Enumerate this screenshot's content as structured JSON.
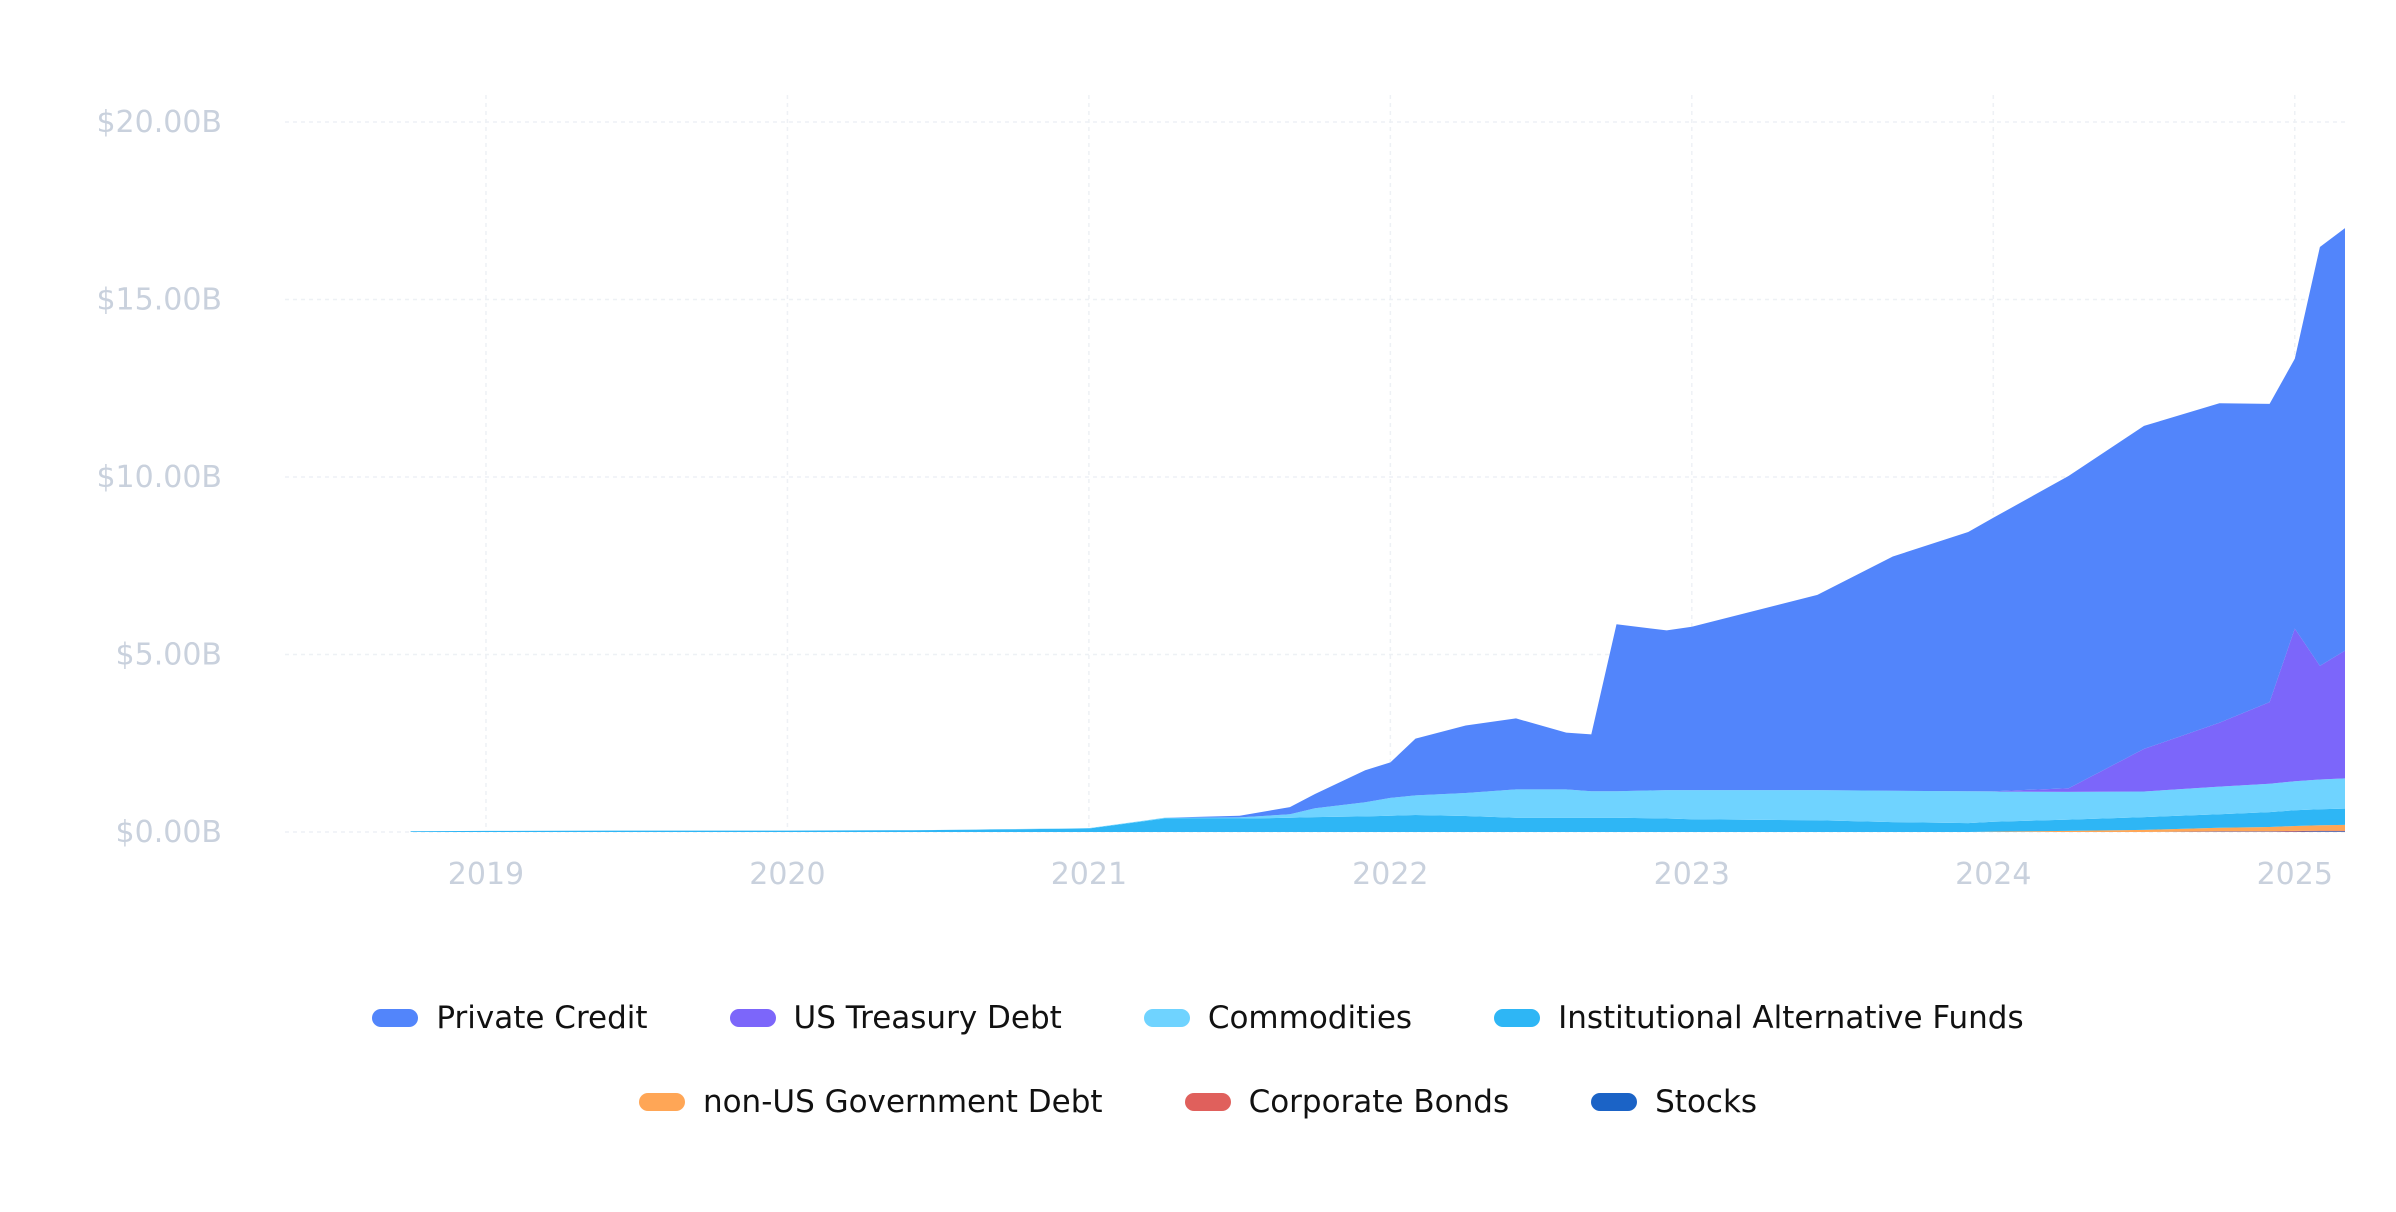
{
  "chart_data": {
    "type": "area",
    "stacked": true,
    "y_ticks": [
      "$0.00B",
      "$5.00B",
      "$10.00B",
      "$15.00B",
      "$20.00B"
    ],
    "x_ticks": [
      "2019",
      "2020",
      "2021",
      "2022",
      "2023",
      "2024",
      "2025"
    ],
    "ylim": [
      0,
      20
    ],
    "xlim": [
      "2018-05",
      "2025-03"
    ],
    "grid": true,
    "legend_position": "bottom",
    "x": [
      "2018-10",
      "2019-01",
      "2019-06",
      "2020-01",
      "2020-06",
      "2021-01",
      "2021-04",
      "2021-07",
      "2021-09",
      "2021-10",
      "2021-12",
      "2022-01",
      "2022-02",
      "2022-04",
      "2022-06",
      "2022-08",
      "2022-09",
      "2022-10",
      "2022-12",
      "2023-01",
      "2023-06",
      "2023-09",
      "2023-12",
      "2024-01",
      "2024-04",
      "2024-07",
      "2024-10",
      "2024-12",
      "2025-01",
      "2025-02",
      "2025-03"
    ],
    "series": [
      {
        "name": "Stocks",
        "color": "#1b63c6",
        "values": [
          0,
          0,
          0,
          0,
          0,
          0,
          0,
          0,
          0,
          0,
          0,
          0,
          0,
          0,
          0,
          0,
          0,
          0,
          0,
          0,
          0,
          0,
          0,
          0,
          0,
          0,
          0.01,
          0.01,
          0.01,
          0.02,
          0.02
        ]
      },
      {
        "name": "Corporate Bonds",
        "color": "#e0605c",
        "values": [
          0,
          0,
          0,
          0,
          0,
          0,
          0,
          0,
          0,
          0,
          0,
          0,
          0,
          0,
          0,
          0,
          0,
          0,
          0,
          0,
          0,
          0,
          0,
          0,
          0,
          0,
          0.01,
          0.01,
          0.02,
          0.02,
          0.02
        ]
      },
      {
        "name": "non-US Government Debt",
        "color": "#ffa656",
        "values": [
          0,
          0,
          0,
          0,
          0,
          0,
          0,
          0,
          0,
          0,
          0,
          0,
          0,
          0,
          0,
          0,
          0,
          0,
          0,
          0,
          0,
          0,
          0,
          0.01,
          0.03,
          0.06,
          0.1,
          0.12,
          0.14,
          0.15,
          0.16
        ]
      },
      {
        "name": "Institutional Alternative Funds",
        "color": "#2eb6f5",
        "values": [
          0.02,
          0.03,
          0.04,
          0.04,
          0.05,
          0.1,
          0.38,
          0.38,
          0.4,
          0.42,
          0.44,
          0.46,
          0.48,
          0.45,
          0.4,
          0.4,
          0.4,
          0.4,
          0.38,
          0.36,
          0.33,
          0.28,
          0.25,
          0.28,
          0.32,
          0.36,
          0.38,
          0.42,
          0.44,
          0.45,
          0.46
        ]
      },
      {
        "name": "Commodities",
        "color": "#6fd3ff",
        "values": [
          0,
          0,
          0,
          0,
          0,
          0.01,
          0.02,
          0.03,
          0.1,
          0.25,
          0.4,
          0.5,
          0.55,
          0.65,
          0.8,
          0.8,
          0.75,
          0.75,
          0.8,
          0.82,
          0.85,
          0.88,
          0.9,
          0.85,
          0.78,
          0.72,
          0.78,
          0.8,
          0.82,
          0.84,
          0.85
        ]
      },
      {
        "name": "US Treasury Debt",
        "color": "#7c66fa",
        "values": [
          0,
          0,
          0,
          0,
          0,
          0,
          0,
          0,
          0,
          0,
          0,
          0,
          0,
          0,
          0,
          0,
          0,
          0,
          0,
          0,
          0,
          0,
          0,
          0.01,
          0.1,
          1.2,
          1.8,
          2.3,
          4.3,
          3.2,
          3.6
        ]
      },
      {
        "name": "Private Credit",
        "color": "#5285fb",
        "values": [
          0,
          0,
          0,
          0,
          0,
          0,
          0,
          0.05,
          0.2,
          0.4,
          0.9,
          1.0,
          1.6,
          1.9,
          2.0,
          1.6,
          1.6,
          4.7,
          4.5,
          4.6,
          5.5,
          6.6,
          7.3,
          7.7,
          8.8,
          9.1,
          9.0,
          8.4,
          7.6,
          11.8,
          11.9
        ]
      }
    ]
  }
}
